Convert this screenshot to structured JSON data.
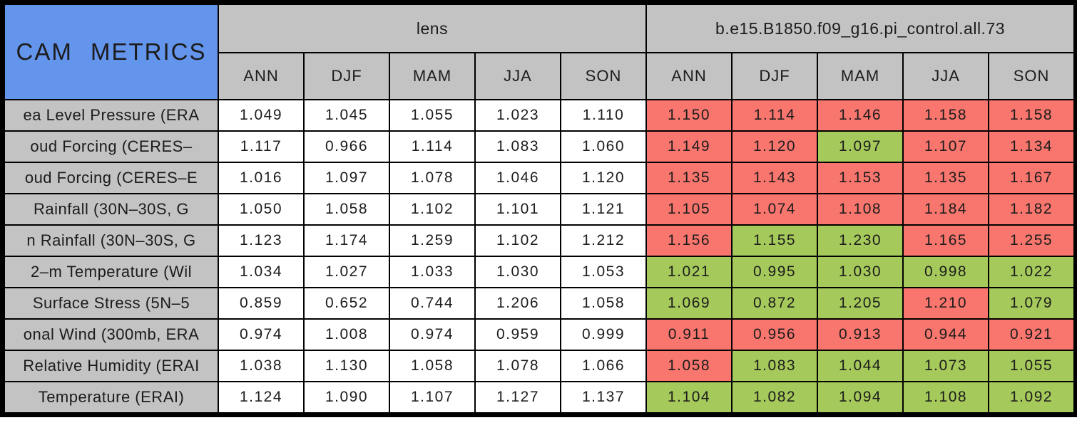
{
  "chart_data": {
    "type": "table",
    "title": "CAM METRICS",
    "column_groups": [
      {
        "label": "lens",
        "span": 5
      },
      {
        "label": "b.e15.B1850.f09_g16.pi_control.all.73",
        "span": 5
      }
    ],
    "season_columns": [
      "ANN",
      "DJF",
      "MAM",
      "JJA",
      "SON",
      "ANN",
      "DJF",
      "MAM",
      "JJA",
      "SON"
    ],
    "rows": [
      {
        "label": "ea Level Pressure (ERA",
        "lens": [
          "1.049",
          "1.045",
          "1.055",
          "1.023",
          "1.110"
        ],
        "control": [
          "1.150",
          "1.114",
          "1.146",
          "1.158",
          "1.158"
        ],
        "control_status": [
          "red",
          "red",
          "red",
          "red",
          "red"
        ]
      },
      {
        "label": "oud Forcing (CERES–",
        "lens": [
          "1.117",
          "0.966",
          "1.114",
          "1.083",
          "1.060"
        ],
        "control": [
          "1.149",
          "1.120",
          "1.097",
          "1.107",
          "1.134"
        ],
        "control_status": [
          "red",
          "red",
          "green",
          "red",
          "red"
        ]
      },
      {
        "label": "oud Forcing (CERES–E",
        "lens": [
          "1.016",
          "1.097",
          "1.078",
          "1.046",
          "1.120"
        ],
        "control": [
          "1.135",
          "1.143",
          "1.153",
          "1.135",
          "1.167"
        ],
        "control_status": [
          "red",
          "red",
          "red",
          "red",
          "red"
        ]
      },
      {
        "label": "Rainfall (30N–30S, G",
        "lens": [
          "1.050",
          "1.058",
          "1.102",
          "1.101",
          "1.121"
        ],
        "control": [
          "1.105",
          "1.074",
          "1.108",
          "1.184",
          "1.182"
        ],
        "control_status": [
          "red",
          "red",
          "red",
          "red",
          "red"
        ]
      },
      {
        "label": "n Rainfall (30N–30S, G",
        "lens": [
          "1.123",
          "1.174",
          "1.259",
          "1.102",
          "1.212"
        ],
        "control": [
          "1.156",
          "1.155",
          "1.230",
          "1.165",
          "1.255"
        ],
        "control_status": [
          "red",
          "green",
          "green",
          "red",
          "red"
        ]
      },
      {
        "label": "2–m Temperature (Wil",
        "lens": [
          "1.034",
          "1.027",
          "1.033",
          "1.030",
          "1.053"
        ],
        "control": [
          "1.021",
          "0.995",
          "1.030",
          "0.998",
          "1.022"
        ],
        "control_status": [
          "green",
          "green",
          "green",
          "green",
          "green"
        ]
      },
      {
        "label": "Surface Stress (5N–5",
        "lens": [
          "0.859",
          "0.652",
          "0.744",
          "1.206",
          "1.058"
        ],
        "control": [
          "1.069",
          "0.872",
          "1.205",
          "1.210",
          "1.079"
        ],
        "control_status": [
          "green",
          "green",
          "green",
          "red",
          "green"
        ]
      },
      {
        "label": "onal Wind (300mb, ERA",
        "lens": [
          "0.974",
          "1.008",
          "0.974",
          "0.959",
          "0.999"
        ],
        "control": [
          "0.911",
          "0.956",
          "0.913",
          "0.944",
          "0.921"
        ],
        "control_status": [
          "red",
          "red",
          "red",
          "red",
          "red"
        ]
      },
      {
        "label": "Relative Humidity (ERAI",
        "lens": [
          "1.038",
          "1.130",
          "1.058",
          "1.078",
          "1.066"
        ],
        "control": [
          "1.058",
          "1.083",
          "1.044",
          "1.073",
          "1.055"
        ],
        "control_status": [
          "red",
          "green",
          "green",
          "green",
          "green"
        ]
      },
      {
        "label": "Temperature (ERAI)",
        "lens": [
          "1.124",
          "1.090",
          "1.107",
          "1.127",
          "1.137"
        ],
        "control": [
          "1.104",
          "1.082",
          "1.094",
          "1.108",
          "1.092"
        ],
        "control_status": [
          "green",
          "green",
          "green",
          "green",
          "green"
        ]
      }
    ],
    "layout": {
      "grid": "on",
      "legend": "none"
    },
    "colors": {
      "status_red": "#F8766E",
      "status_green": "#A5C95A",
      "header_gray": "#C3C3C3",
      "corner_blue": "#6495ED",
      "border_black": "#000000",
      "value_white": "#FFFFFF"
    }
  }
}
